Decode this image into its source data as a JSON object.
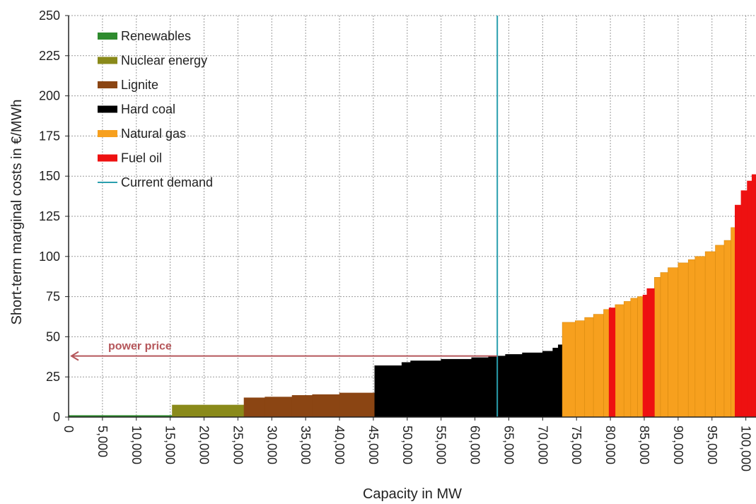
{
  "chart_data": {
    "type": "bar",
    "xlabel": "Capacity in MW",
    "ylabel": "Short-term marginal costs in €/MWh",
    "xlim": [
      0,
      101500
    ],
    "ylim": [
      0,
      250
    ],
    "x_ticks": [
      0,
      5000,
      10000,
      15000,
      20000,
      25000,
      30000,
      35000,
      40000,
      45000,
      50000,
      55000,
      60000,
      65000,
      70000,
      75000,
      80000,
      85000,
      90000,
      95000,
      100000
    ],
    "x_tick_labels": [
      "0",
      "5,000",
      "10,000",
      "15,000",
      "20,000",
      "25,000",
      "30,000",
      "35,000",
      "40,000",
      "45,000",
      "50,000",
      "55,000",
      "60,000",
      "65,000",
      "70,000",
      "75,000",
      "80,000",
      "85,000",
      "90,000",
      "95,000",
      "100,000"
    ],
    "y_ticks": [
      0,
      25,
      50,
      75,
      100,
      125,
      150,
      175,
      200,
      225,
      250
    ],
    "grid": true,
    "legend_position": "top-left",
    "series": [
      {
        "name": "Renewables",
        "color": "#2e8b2e",
        "steps": [
          [
            0,
            15300,
            1
          ]
        ]
      },
      {
        "name": "Nuclear energy",
        "color": "#8a8a1a",
        "steps": [
          [
            15300,
            25900,
            7.5
          ]
        ]
      },
      {
        "name": "Lignite",
        "color": "#8b4513",
        "steps": [
          [
            25900,
            29000,
            12
          ],
          [
            29000,
            33000,
            12.5
          ],
          [
            33000,
            36000,
            13.5
          ],
          [
            36000,
            40000,
            14
          ],
          [
            40000,
            45200,
            15
          ]
        ]
      },
      {
        "name": "Hard coal",
        "color": "#000000",
        "steps": [
          [
            45200,
            49200,
            32
          ],
          [
            49200,
            50500,
            34
          ],
          [
            50500,
            55000,
            35
          ],
          [
            55000,
            59500,
            36
          ],
          [
            59500,
            62000,
            37
          ],
          [
            62000,
            64500,
            38
          ],
          [
            64500,
            67000,
            39
          ],
          [
            67000,
            70000,
            40
          ],
          [
            70000,
            71500,
            41
          ],
          [
            71500,
            72300,
            43
          ],
          [
            72300,
            72900,
            45
          ]
        ]
      },
      {
        "name": "Natural gas",
        "color": "#f7a01e",
        "steps": [
          [
            72900,
            74800,
            59
          ],
          [
            74800,
            76200,
            60
          ],
          [
            76200,
            77500,
            62
          ],
          [
            77500,
            79000,
            64
          ],
          [
            79000,
            79800,
            67
          ],
          [
            80700,
            82000,
            70
          ],
          [
            82000,
            83000,
            72
          ],
          [
            83000,
            84000,
            74
          ],
          [
            84000,
            84800,
            75
          ],
          [
            86500,
            87400,
            87
          ],
          [
            87400,
            88500,
            90
          ],
          [
            88500,
            90000,
            93
          ],
          [
            90000,
            91500,
            96
          ],
          [
            91500,
            92500,
            98
          ],
          [
            92500,
            94000,
            100
          ],
          [
            94000,
            95500,
            103
          ],
          [
            95500,
            96800,
            107
          ],
          [
            96800,
            97800,
            110
          ],
          [
            97800,
            98400,
            118
          ]
        ]
      },
      {
        "name": "Fuel oil",
        "color": "#ee1111",
        "steps": [
          [
            79800,
            80700,
            68
          ],
          [
            84800,
            85400,
            76
          ],
          [
            85400,
            86500,
            80
          ],
          [
            98400,
            99300,
            132
          ],
          [
            99300,
            100200,
            141
          ],
          [
            100200,
            100900,
            147
          ],
          [
            100900,
            101500,
            151
          ]
        ]
      }
    ],
    "current_demand": {
      "name": "Current demand",
      "x": 63300,
      "color": "#2a9fae"
    },
    "annotation": {
      "text": "power price",
      "y": 38,
      "color": "#b5565a"
    }
  }
}
